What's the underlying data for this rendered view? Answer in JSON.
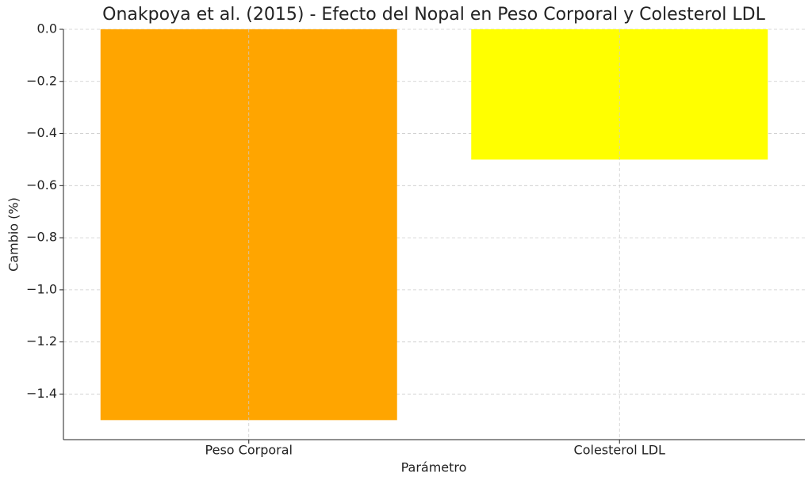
{
  "chart_data": {
    "type": "bar",
    "title": "Onakpoya et al. (2015) - Efecto del Nopal en Peso Corporal y Colesterol LDL",
    "x_label": "Parámetro",
    "y_label": "Cambio (%)",
    "categories": [
      "Peso Corporal",
      "Colesterol LDL"
    ],
    "values": [
      -1.5,
      -0.5
    ],
    "colors": [
      "#ffa500",
      "#ffff00"
    ],
    "ylim": [
      -1.575,
      0
    ],
    "yticks": [
      {
        "value": 0,
        "label": "0.0"
      },
      {
        "value": -0.2,
        "label": "−0.2"
      },
      {
        "value": -0.4,
        "label": "−0.4"
      },
      {
        "value": -0.6,
        "label": "−0.6"
      },
      {
        "value": -0.8,
        "label": "−0.8"
      },
      {
        "value": -1.0,
        "label": "−1.0"
      },
      {
        "value": -1.2,
        "label": "−1.2"
      },
      {
        "value": -1.4,
        "label": "−1.4"
      }
    ],
    "grid": true
  }
}
